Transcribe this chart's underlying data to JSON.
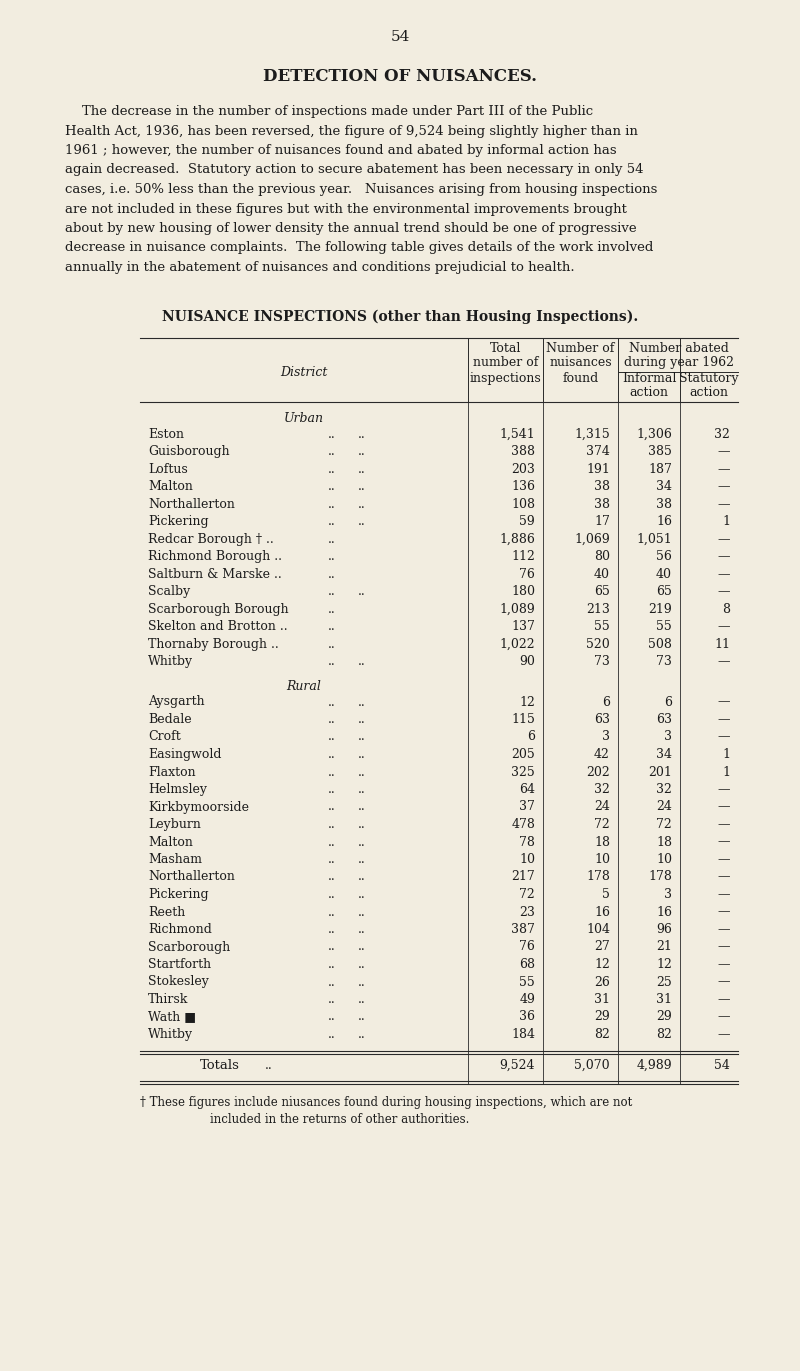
{
  "page_number": "54",
  "title": "DETECTION OF NUISANCES.",
  "body_lines": [
    "    The decrease in the number of inspections made under Part III of the Public",
    "Health Act, 1936, has been reversed, the figure of 9,524 being slightly higher than in",
    "1961 ; however, the number of nuisances found and abated by informal action has",
    "again decreased.  Statutory action to secure abatement has been necessary in only 54",
    "cases, i.e. 50% less than the previous year.   Nuisances arising from housing inspections",
    "are not included in these figures but with the environmental improvements brought",
    "about by new housing of lower density the annual trend should be one of progressive",
    "decrease in nuisance complaints.  The following table gives details of the work involved",
    "annually in the abatement of nuisances and conditions prejudicial to health."
  ],
  "table_title": "NUISANCE INSPECTIONS (other than Housing Inspections).",
  "urban_header": "Urban",
  "rural_header": "Rural",
  "urban_rows": [
    [
      "Eston",
      "..",
      "..",
      "1,541",
      "1,315",
      "1,306",
      "32"
    ],
    [
      "Guisborough",
      "..",
      "..",
      "388",
      "374",
      "385",
      "—"
    ],
    [
      "Loftus",
      "..",
      "..",
      "203",
      "191",
      "187",
      "—"
    ],
    [
      "Malton",
      "..",
      "..",
      "136",
      "38",
      "34",
      "—"
    ],
    [
      "Northallerton",
      "..",
      "..",
      "108",
      "38",
      "38",
      "—"
    ],
    [
      "Pickering",
      "..",
      "..",
      "59",
      "17",
      "16",
      "1"
    ],
    [
      "Redcar Borough †",
      "..",
      "..",
      "1,886",
      "1,069",
      "1,051",
      "—"
    ],
    [
      "Richmond Borough ..",
      "..",
      "",
      "112",
      "80",
      "56",
      "—"
    ],
    [
      "Saltburn & Marske ..",
      "..",
      "",
      "76",
      "40",
      "40",
      "—"
    ],
    [
      "Scalby",
      "..",
      "..",
      "180",
      "65",
      "65",
      "—"
    ],
    [
      "Scarborough Borough",
      "..",
      "",
      "1,089",
      "213",
      "219",
      "8"
    ],
    [
      "Skelton and Brotton ..",
      "..",
      "",
      "137",
      "55",
      "55",
      "—"
    ],
    [
      "Thornaby Borough ..",
      "..",
      "",
      "1,022",
      "520",
      "508",
      "11"
    ],
    [
      "Whitby",
      "..",
      "..",
      "90",
      "73",
      "73",
      "—"
    ]
  ],
  "rural_rows": [
    [
      "Aysgarth",
      "..",
      "..",
      "12",
      "6",
      "6",
      "—"
    ],
    [
      "Bedale",
      "..",
      "..",
      "115",
      "63",
      "63",
      "—"
    ],
    [
      "Croft",
      "..",
      "..",
      "6",
      "3",
      "3",
      "—"
    ],
    [
      "Easingwold",
      "..",
      "..",
      "205",
      "42",
      "34",
      "1"
    ],
    [
      "Flaxton",
      "..",
      "..",
      "325",
      "202",
      "201",
      "1"
    ],
    [
      "Helmsley",
      "..",
      "..",
      "64",
      "32",
      "32",
      "—"
    ],
    [
      "Kirkbymoorside",
      "..",
      "..",
      "37",
      "24",
      "24",
      "—"
    ],
    [
      "Leyburn",
      "..",
      "..",
      "478",
      "72",
      "72",
      "—"
    ],
    [
      "Malton",
      "..",
      "..",
      "78",
      "18",
      "18",
      "—"
    ],
    [
      "Masham",
      "..",
      "..",
      "10",
      "10",
      "10",
      "—"
    ],
    [
      "Northallerton",
      "..",
      "..",
      "217",
      "178",
      "178",
      "—"
    ],
    [
      "Pickering",
      "..",
      "..",
      "72",
      "5",
      "3",
      "—"
    ],
    [
      "Reeth",
      "..",
      "..",
      "23",
      "16",
      "16",
      "—"
    ],
    [
      "Richmond",
      "..",
      "..",
      "387",
      "104",
      "96",
      "—"
    ],
    [
      "Scarborough",
      "..",
      "..",
      "76",
      "27",
      "21",
      "—"
    ],
    [
      "Startforth",
      "..",
      "..",
      "68",
      "12",
      "12",
      "—"
    ],
    [
      "Stokesley",
      "..",
      "..",
      "55",
      "26",
      "25",
      "—"
    ],
    [
      "Thirsk",
      "..",
      "..",
      "49",
      "31",
      "31",
      "—"
    ],
    [
      "Wath ■",
      "..",
      "..",
      "36",
      "29",
      "29",
      "—"
    ],
    [
      "Whitby",
      "..",
      "..",
      "184",
      "82",
      "82",
      "—"
    ]
  ],
  "totals_row": [
    "Totals",
    "..",
    "9,524",
    "5,070",
    "4,989",
    "54"
  ],
  "footnote_line1": "† These figures include niusances found during housing inspections, which are not",
  "footnote_line2": "        included in the returns of other authorities.",
  "bg_color": "#f2ede0",
  "text_color": "#1c1c1c",
  "line_color": "#2a2a2a"
}
